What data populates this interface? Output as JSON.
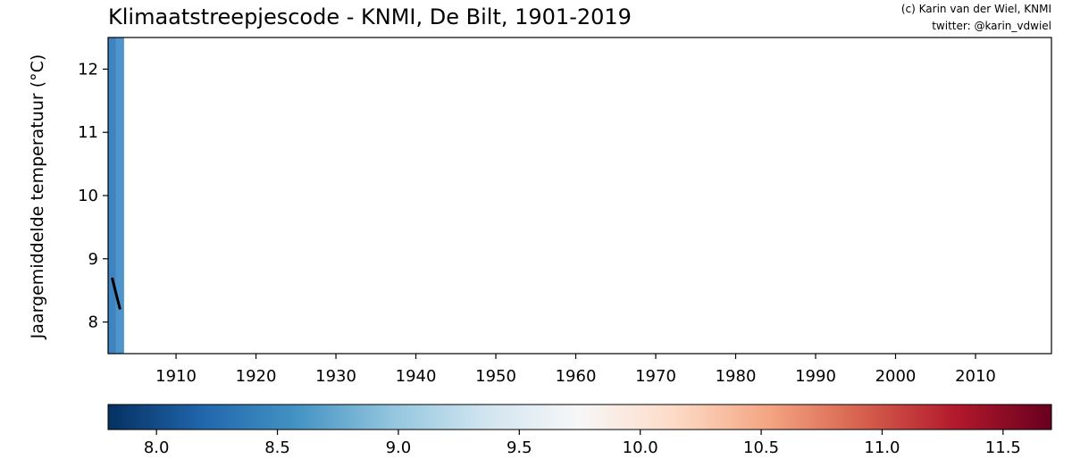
{
  "chart_data": {
    "type": "bar",
    "title": "Klimaatstreepjescode - KNMI, De Bilt, 1901-2019",
    "credit_line1": "(c) Karin van der Wiel, KNMI",
    "credit_line2": "twitter: @karin_vdwiel",
    "ylabel": "Jaargemiddelde temperatuur (°C)",
    "xlabel": "",
    "xlim": [
      1901.5,
      2019.5
    ],
    "ylim": [
      7.5,
      12.5
    ],
    "x_ticks": [
      1910,
      1920,
      1930,
      1940,
      1950,
      1960,
      1970,
      1980,
      1990,
      2000,
      2010
    ],
    "y_ticks": [
      8,
      9,
      10,
      11,
      12
    ],
    "grid": false,
    "stripes": [
      {
        "year": 1902,
        "temperature": 8.7,
        "color": "#3f84c0"
      },
      {
        "year": 1903,
        "temperature": 8.2,
        "color": "#4f95cc"
      }
    ],
    "line": {
      "x": [
        1902,
        1903
      ],
      "y": [
        8.7,
        8.2
      ],
      "color": "#000000"
    },
    "colorbar": {
      "min": 7.8,
      "max": 11.7,
      "ticks": [
        8.0,
        8.5,
        9.0,
        9.5,
        10.0,
        10.5,
        11.0,
        11.5
      ],
      "tick_labels": [
        "8.0",
        "8.5",
        "9.0",
        "9.5",
        "10.0",
        "10.5",
        "11.0",
        "11.5"
      ],
      "colormap": [
        "#053061",
        "#2166ac",
        "#4393c3",
        "#92c5de",
        "#d1e5f0",
        "#f7f7f7",
        "#fddbc7",
        "#f4a582",
        "#d6604d",
        "#b2182b",
        "#67001f"
      ]
    }
  }
}
